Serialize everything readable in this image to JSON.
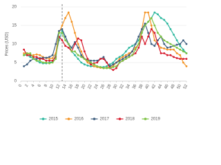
{
  "chart_data": {
    "type": "line",
    "y_label": "Prices (USD)",
    "x": [
      1,
      2,
      3,
      4,
      5,
      6,
      7,
      8,
      9,
      10,
      11,
      12,
      13,
      14,
      15,
      16,
      17,
      18,
      19,
      20,
      21,
      22,
      23,
      24,
      25,
      26,
      27,
      28,
      29,
      30,
      31,
      32,
      33,
      34,
      35,
      36,
      37,
      38,
      39,
      40,
      41,
      42,
      43,
      44,
      45,
      46,
      47,
      48,
      49,
      50,
      51,
      52
    ],
    "xlim": [
      0,
      52
    ],
    "xticks": [
      0,
      2,
      4,
      6,
      8,
      10,
      12,
      14,
      16,
      18,
      20,
      22,
      24,
      26,
      28,
      30,
      32,
      34,
      36,
      38,
      40,
      42,
      44,
      46,
      48,
      50,
      52
    ],
    "ylim": [
      0,
      20
    ],
    "yticks": [
      0,
      5,
      10,
      15,
      20
    ],
    "grid": true,
    "reference_line_x": 13,
    "legend_position": "bottom",
    "series": [
      {
        "name": "2015",
        "color": "#2bb79e",
        "values": [
          7,
          7,
          6.5,
          6,
          5.5,
          5,
          4.8,
          4.8,
          5,
          5.2,
          7,
          11,
          13.5,
          12,
          10,
          8,
          7,
          6,
          5,
          4.5,
          4.2,
          4,
          4,
          3.8,
          3.8,
          3.8,
          4,
          4.5,
          5,
          6,
          6.5,
          7,
          8,
          9,
          9.5,
          10,
          11,
          13,
          15,
          16,
          17,
          18.5,
          18,
          17,
          16.5,
          15.5,
          14,
          12.5,
          11,
          9.5,
          8.5,
          7.5
        ]
      },
      {
        "name": "2016",
        "color": "#f39323",
        "values": [
          7.5,
          7.5,
          7,
          7,
          7.2,
          7,
          6.5,
          6.2,
          6,
          6.2,
          7.5,
          13,
          15,
          17,
          18.5,
          16,
          13,
          10,
          8,
          6,
          5,
          4.5,
          4,
          3.8,
          3.6,
          3.5,
          3.6,
          3.8,
          4,
          5,
          6,
          6.5,
          7,
          7.5,
          8,
          9,
          10,
          14,
          18.5,
          18.5,
          15,
          11,
          10,
          9,
          8.8,
          8.5,
          8.5,
          8.5,
          7.5,
          7,
          5,
          4
        ]
      },
      {
        "name": "2017",
        "color": "#3f5f7f",
        "values": [
          4,
          4.5,
          5.5,
          6,
          6,
          6.2,
          6.3,
          6.3,
          6.5,
          7,
          10,
          13.5,
          14,
          12,
          10,
          9,
          10.5,
          9,
          7,
          6,
          5.8,
          5.5,
          5.5,
          5.5,
          6,
          6.5,
          5,
          4,
          4.5,
          5,
          5.5,
          6,
          6.5,
          7,
          8,
          10,
          12,
          14,
          15.5,
          13,
          10,
          9.5,
          11,
          12,
          10,
          9,
          9.2,
          9.5,
          9.8,
          10,
          11,
          10
        ]
      },
      {
        "name": "2018",
        "color": "#d7182a",
        "values": [
          8.5,
          7,
          7,
          6.5,
          6.5,
          6,
          6,
          5.5,
          5.5,
          5.5,
          6.5,
          12,
          11,
          9.5,
          9,
          8,
          10,
          11.5,
          11,
          8,
          6,
          4.5,
          4.8,
          5,
          6,
          6,
          5,
          3.5,
          3,
          3.5,
          5,
          5.5,
          6,
          6.5,
          7,
          7.5,
          9,
          12,
          10,
          12,
          14,
          13,
          10,
          7.5,
          7.5,
          7,
          7,
          6.5,
          6.2,
          6,
          6,
          6
        ]
      },
      {
        "name": "2019",
        "color": "#7cc242",
        "values": [
          7,
          7.5,
          7.5,
          6,
          5.5,
          5.5,
          5,
          5,
          4.8,
          5,
          6,
          13,
          13,
          11,
          10,
          8,
          8,
          7,
          6.5,
          6,
          5.5,
          5,
          4.5,
          4,
          3.8,
          3.5,
          3.5,
          3.5,
          3.8,
          4,
          5,
          5.5,
          6,
          6.5,
          7,
          8.5,
          10,
          13,
          15,
          16,
          17,
          15,
          13,
          12,
          11,
          10.5,
          10,
          9.5,
          9,
          8.5,
          8,
          7.5
        ]
      }
    ]
  }
}
